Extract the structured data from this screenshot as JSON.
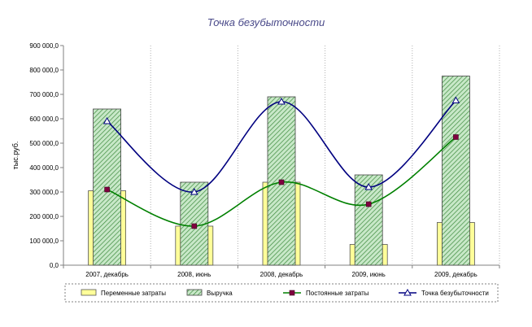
{
  "chart_data": {
    "type": "bar",
    "title": "Точка безубыточности",
    "ylabel": "тыс.руб.",
    "xlabel": "",
    "ylim": [
      0,
      900000
    ],
    "yticks": [
      0,
      100000,
      200000,
      300000,
      400000,
      500000,
      600000,
      700000,
      800000,
      900000
    ],
    "ytick_labels": [
      "0,0",
      "100 000,0",
      "200 000,0",
      "300 000,0",
      "400 000,0",
      "500 000,0",
      "600 000,0",
      "700 000,0",
      "800 000,0",
      "900 000,0"
    ],
    "categories": [
      "2007, декабрь",
      "2008, июнь",
      "2008, декабрь",
      "2009, июнь",
      "2009, декабрь"
    ],
    "grid": "vertical dotted",
    "legend_position": "bottom",
    "series": [
      {
        "name": "Переменные затраты",
        "kind": "bar",
        "color": "#ffff99",
        "values": [
          305000,
          160000,
          340000,
          85000,
          175000
        ]
      },
      {
        "name": "Выручка",
        "kind": "bar-hatched",
        "color": "#66aa66",
        "values": [
          640000,
          340000,
          690000,
          370000,
          775000
        ]
      },
      {
        "name": "Постоянные затраты",
        "kind": "line",
        "color": "#008000",
        "marker_color": "#800040",
        "values": [
          310000,
          160000,
          340000,
          250000,
          525000
        ]
      },
      {
        "name": "Точка безубыточности",
        "kind": "line",
        "color": "#000080",
        "marker": "triangle",
        "values": [
          590000,
          300000,
          670000,
          320000,
          675000
        ]
      }
    ]
  }
}
